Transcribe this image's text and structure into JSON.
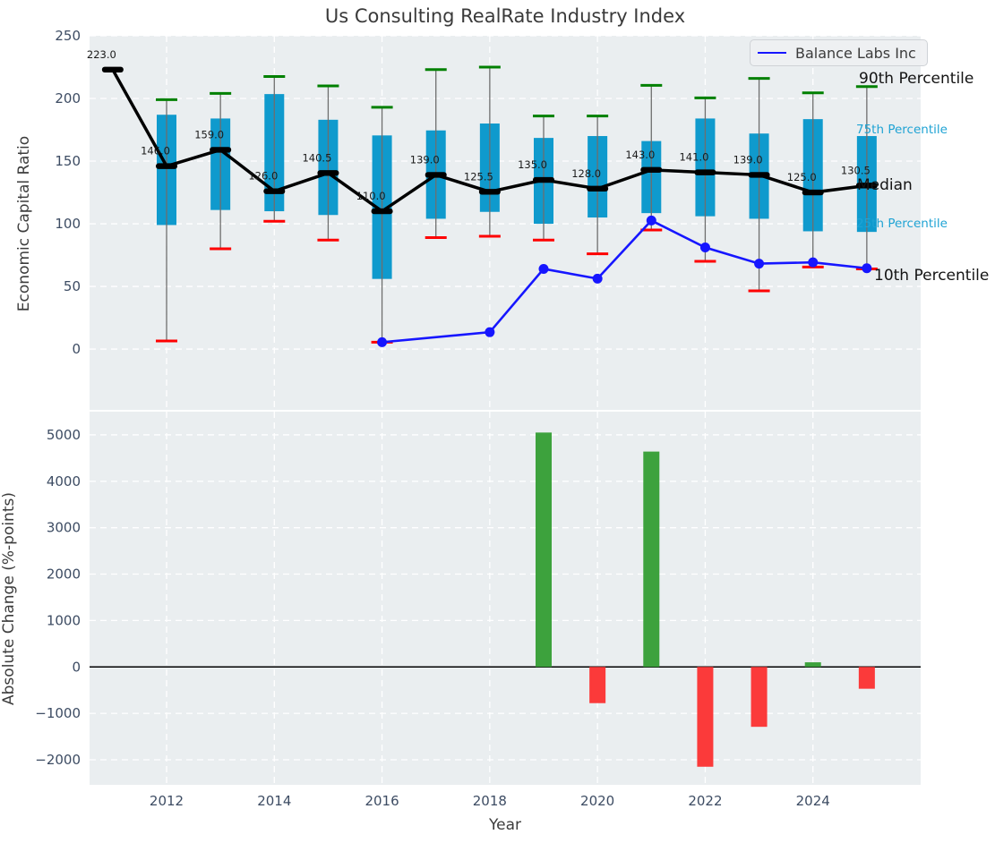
{
  "figure": {
    "title": "Us Consulting RealRate Industry Index"
  },
  "legend": {
    "label": "Balance Labs Inc"
  },
  "annotations": {
    "p90": "90th Percentile",
    "p75": "75th Percentile",
    "median": "Median",
    "p25": "25th Percentile",
    "p10": "10th Percentile"
  },
  "colors": {
    "box_fill": "#0f9acd",
    "whisker": "#6e6e6e",
    "cap_high": "#008000",
    "cap_low": "#fe0000",
    "median_line": "#000000",
    "company_line": "#1616ff",
    "bar_positive": "#3da23d",
    "bar_negative": "#fb3a3a",
    "panel_bg": "#eaeef0",
    "grid": "#ffffff",
    "tick_label": "#3d4c63",
    "zero_line": "#000000"
  },
  "chart_data": [
    {
      "type": "boxplot",
      "title": "Us Consulting RealRate Industry Index",
      "ylabel": "Economic Capital Ratio",
      "xlabel": "",
      "xlim": [
        2010.57,
        2026.0
      ],
      "ylim": [
        -48.5,
        250
      ],
      "yticks": [
        0,
        50,
        100,
        150,
        200,
        250
      ],
      "ytick_labels": [
        "0",
        "50",
        "100",
        "150",
        "200",
        "250"
      ],
      "xticks": [
        2012,
        2014,
        2016,
        2018,
        2020,
        2022,
        2024
      ],
      "grid": "white dashed, on",
      "legend_position": "upper right",
      "years": [
        2011,
        2012,
        2013,
        2014,
        2015,
        2016,
        2017,
        2018,
        2019,
        2020,
        2021,
        2022,
        2023,
        2024,
        2025
      ],
      "p10": [
        null,
        6.5,
        80,
        102,
        87,
        5.5,
        89,
        90,
        87,
        76,
        95,
        70,
        46.5,
        65.5,
        64
      ],
      "p25": [
        null,
        99,
        111,
        110,
        107,
        56,
        104,
        109.5,
        100,
        105,
        108.5,
        106,
        104,
        94,
        93.5
      ],
      "median": [
        223.0,
        146.0,
        159.0,
        126.0,
        140.5,
        110.0,
        139.0,
        125.5,
        135.0,
        128.0,
        143.0,
        141.0,
        139.0,
        125.0,
        130.5
      ],
      "p75": [
        null,
        187,
        184,
        203.5,
        183,
        170.5,
        174.5,
        180,
        168.5,
        170,
        166,
        184,
        172,
        183.5,
        170
      ],
      "p90": [
        null,
        199,
        204,
        217.5,
        210,
        193,
        223,
        225,
        186,
        186,
        210.5,
        200.5,
        216,
        204.5,
        209.5
      ],
      "median_labels": [
        "223.0",
        "146.0",
        "159.0",
        "126.0",
        "140.5",
        "110.0",
        "139.0",
        "125.5",
        "135.0",
        "128.0",
        "143.0",
        "141.0",
        "139.0",
        "125.0",
        "130.5"
      ],
      "series": [
        {
          "name": "Balance Labs Inc",
          "x": [
            2016,
            2018,
            2019,
            2020,
            2021,
            2022,
            2023,
            2024,
            2025
          ],
          "values": [
            5.5,
            13.5,
            64.0,
            56.2,
            102.6,
            81.1,
            68.2,
            69.2,
            64.5
          ]
        }
      ]
    },
    {
      "type": "bar",
      "ylabel": "Absolute Change (%-points)",
      "xlabel": "Year",
      "xlim": [
        2010.57,
        2026.0
      ],
      "ylim": [
        -2540,
        5500
      ],
      "yticks": [
        -2000,
        -1000,
        0,
        1000,
        2000,
        3000,
        4000,
        5000
      ],
      "ytick_labels": [
        "−2000",
        "−1000",
        "0",
        "1000",
        "2000",
        "3000",
        "4000",
        "5000"
      ],
      "xticks": [
        2012,
        2014,
        2016,
        2018,
        2020,
        2022,
        2024
      ],
      "xtick_labels": [
        "2012",
        "2014",
        "2016",
        "2018",
        "2020",
        "2022",
        "2024"
      ],
      "x": [
        2019,
        2020,
        2021,
        2022,
        2023,
        2024,
        2025
      ],
      "values": [
        5050,
        -780,
        4640,
        -2150,
        -1290,
        100,
        -470
      ],
      "grid": "white dashed, on"
    }
  ]
}
